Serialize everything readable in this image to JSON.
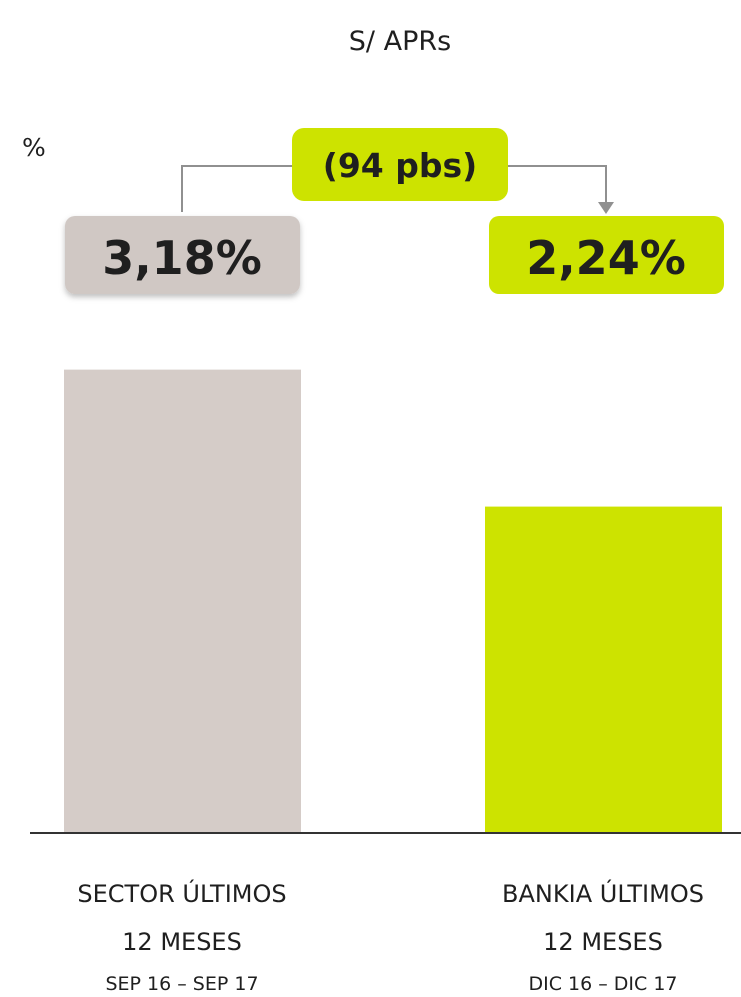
{
  "chart_data": {
    "type": "bar",
    "title": "S/ APRs",
    "unit": "%",
    "categories": [
      {
        "line1": "SECTOR ÚLTIMOS",
        "line2": "12 MESES",
        "period": "SEP 16 – SEP 17"
      },
      {
        "line1": "BANKIA ÚLTIMOS",
        "line2": "12 MESES",
        "period": "DIC 16 – DIC 17"
      }
    ],
    "values": [
      3.18,
      2.24
    ],
    "value_labels": [
      "3,18%",
      "2,24%"
    ],
    "difference_label": "(94 pbs)",
    "ylim": [
      0,
      3.5
    ],
    "grid": false,
    "colors": {
      "sector": "#d5ccc8",
      "bankia": "#cde300",
      "sector_label_bg": "#d0c8c4",
      "connector": "#909090",
      "axis": "#333333"
    }
  }
}
